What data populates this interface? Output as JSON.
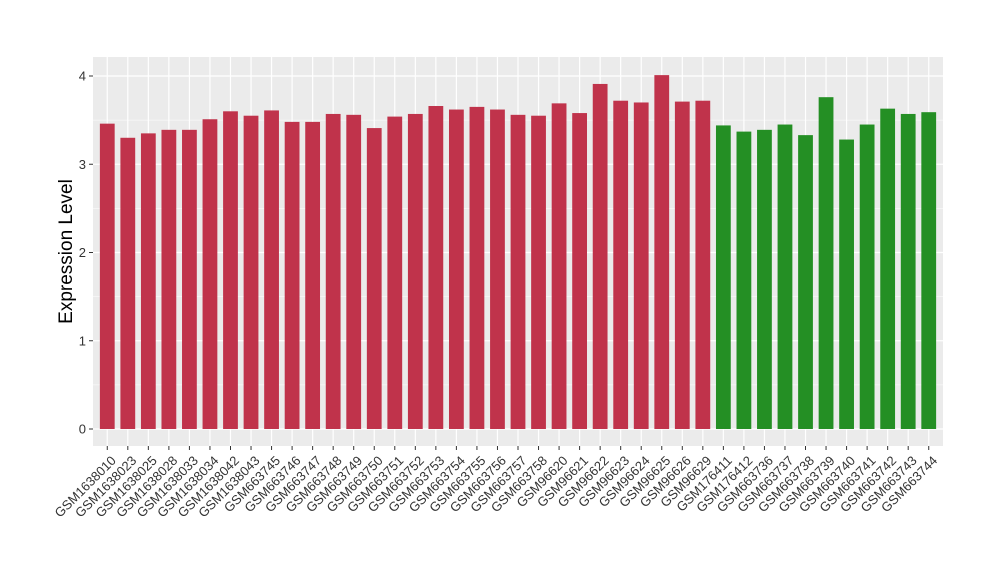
{
  "chart_data": {
    "type": "bar",
    "title": "",
    "xlabel": "",
    "ylabel": "Expression Level",
    "ylim": [
      0,
      4.2
    ],
    "yticks": [
      0,
      1,
      2,
      3,
      4
    ],
    "grid": true,
    "legend": "none",
    "colors": {
      "group1": "#c0334b",
      "group2": "#248f24",
      "panel_bg": "#ebebeb",
      "grid": "#ffffff"
    },
    "categories": [
      "GSM1638010",
      "GSM1638023",
      "GSM1638025",
      "GSM1638028",
      "GSM1638033",
      "GSM1638034",
      "GSM1638042",
      "GSM1638043",
      "GSM663745",
      "GSM663746",
      "GSM663747",
      "GSM663748",
      "GSM663749",
      "GSM663750",
      "GSM663751",
      "GSM663752",
      "GSM663753",
      "GSM663754",
      "GSM663755",
      "GSM663756",
      "GSM663757",
      "GSM663758",
      "GSM96620",
      "GSM96621",
      "GSM96622",
      "GSM96623",
      "GSM96624",
      "GSM96625",
      "GSM96626",
      "GSM96629",
      "GSM176411",
      "GSM176412",
      "GSM663736",
      "GSM663737",
      "GSM663738",
      "GSM663739",
      "GSM663740",
      "GSM663741",
      "GSM663742",
      "GSM663743",
      "GSM663744"
    ],
    "values": [
      3.46,
      3.3,
      3.35,
      3.39,
      3.39,
      3.51,
      3.6,
      3.55,
      3.61,
      3.48,
      3.48,
      3.57,
      3.56,
      3.41,
      3.54,
      3.57,
      3.66,
      3.62,
      3.65,
      3.62,
      3.56,
      3.55,
      3.69,
      3.58,
      3.91,
      3.72,
      3.7,
      4.01,
      3.71,
      3.72,
      3.44,
      3.37,
      3.39,
      3.45,
      3.33,
      3.76,
      3.28,
      3.45,
      3.63,
      3.57,
      3.59
    ],
    "groups": [
      "group1",
      "group1",
      "group1",
      "group1",
      "group1",
      "group1",
      "group1",
      "group1",
      "group1",
      "group1",
      "group1",
      "group1",
      "group1",
      "group1",
      "group1",
      "group1",
      "group1",
      "group1",
      "group1",
      "group1",
      "group1",
      "group1",
      "group1",
      "group1",
      "group1",
      "group1",
      "group1",
      "group1",
      "group1",
      "group1",
      "group2",
      "group2",
      "group2",
      "group2",
      "group2",
      "group2",
      "group2",
      "group2",
      "group2",
      "group2",
      "group2"
    ]
  }
}
